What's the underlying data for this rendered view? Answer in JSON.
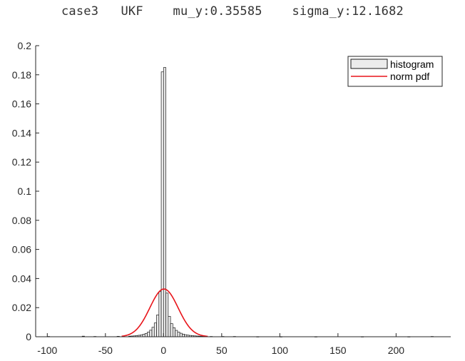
{
  "title": "case3   UKF    mu_y:0.35585    sigma_y:12.1682",
  "colors": {
    "bar_fill": "#ececec",
    "bar_edge": "#1a1a1a",
    "pdf_line": "#e8141a",
    "axis": "#262626"
  },
  "chart_data": {
    "type": "bar",
    "title": "case3   UKF    mu_y:0.35585    sigma_y:12.1682",
    "xlabel": "",
    "ylabel": "",
    "xlim": [
      -110,
      247
    ],
    "ylim": [
      0,
      0.2
    ],
    "xticks": [
      -100,
      -50,
      0,
      50,
      100,
      150,
      200
    ],
    "yticks": [
      0,
      0.02,
      0.04,
      0.06,
      0.08,
      0.1,
      0.12,
      0.14,
      0.16,
      0.18,
      0.2
    ],
    "grid": false,
    "legend": {
      "placement": "top-right",
      "entries": [
        "histogram",
        "norm pdf"
      ]
    },
    "series": [
      {
        "name": "histogram",
        "type": "bar",
        "bin_width": 2,
        "bin_centers": [
          -99,
          -69,
          -59,
          -39,
          -29,
          -27,
          -25,
          -23,
          -21,
          -19,
          -17,
          -15,
          -13,
          -11,
          -9,
          -7,
          -5,
          -3,
          -1,
          1,
          3,
          5,
          7,
          9,
          11,
          13,
          15,
          17,
          19,
          21,
          23,
          25,
          27,
          29,
          31,
          33,
          35,
          41,
          51,
          61,
          81,
          101,
          131,
          171,
          211,
          231
        ],
        "values": [
          0.0002,
          0.0004,
          0.0002,
          0.0003,
          0.0004,
          0.0005,
          0.0006,
          0.0008,
          0.001,
          0.0013,
          0.0017,
          0.0023,
          0.0032,
          0.0045,
          0.0065,
          0.0095,
          0.015,
          0.031,
          0.182,
          0.185,
          0.03,
          0.014,
          0.009,
          0.0062,
          0.0044,
          0.0032,
          0.0024,
          0.0018,
          0.0014,
          0.0011,
          0.0009,
          0.0007,
          0.0006,
          0.0005,
          0.0004,
          0.0003,
          0.0003,
          0.0002,
          0.0002,
          0.0002,
          0.0001,
          0.0001,
          0.0001,
          0.0001,
          0.0001,
          0.0002
        ]
      },
      {
        "name": "norm pdf",
        "type": "line",
        "mu": 0.35585,
        "sigma": 12.1682,
        "x_range": [
          -36,
          38
        ]
      }
    ]
  }
}
